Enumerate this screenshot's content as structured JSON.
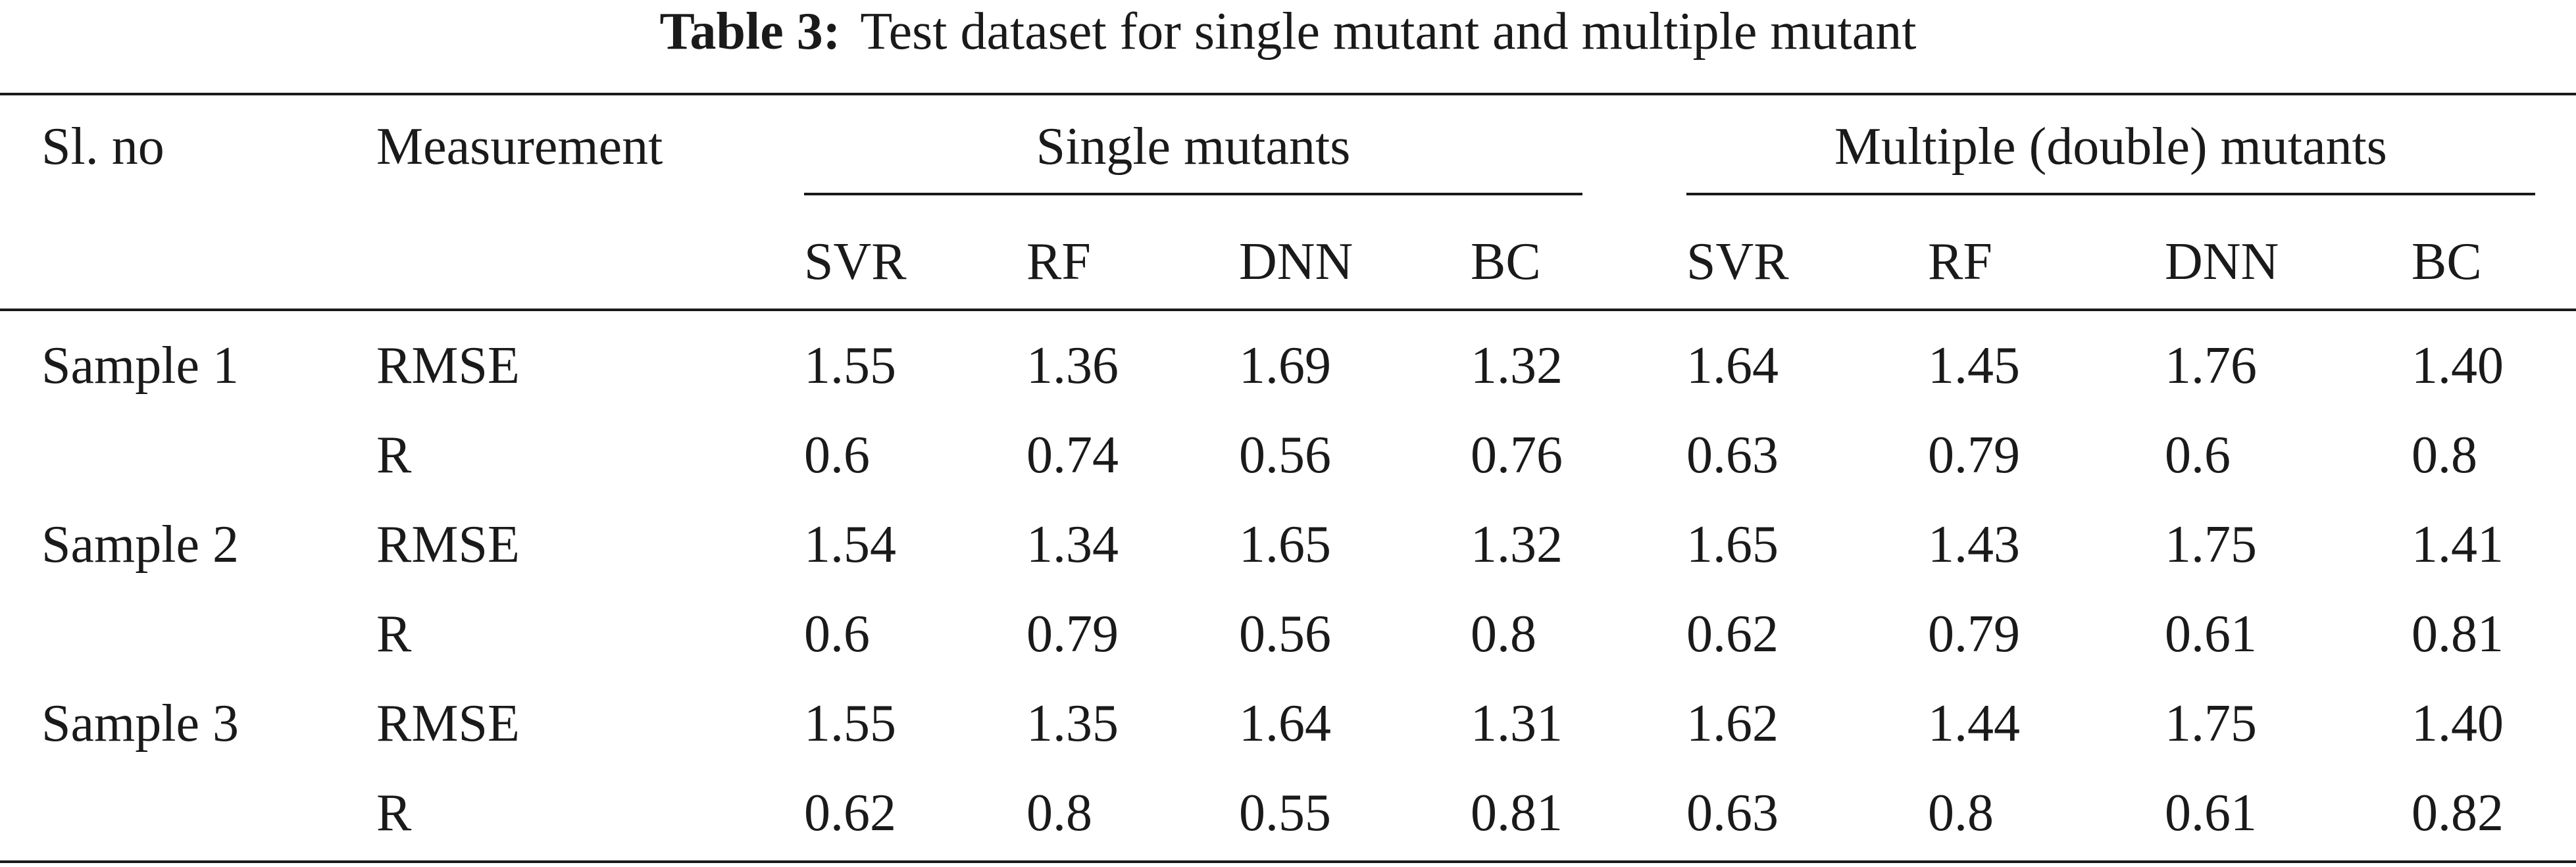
{
  "caption": {
    "label": "Table 3:",
    "text": "Test dataset for single mutant and multiple mutant"
  },
  "header": {
    "slno": "Sl. no",
    "measurement": "Measurement",
    "group_single": "Single mutants",
    "group_multiple": "Multiple (double) mutants",
    "single_models": [
      "SVR",
      "RF",
      "DNN",
      "BC"
    ],
    "multiple_models": [
      "SVR",
      "RF",
      "DNN",
      "BC"
    ]
  },
  "rows": [
    {
      "sample": "Sample 1",
      "measure": "RMSE",
      "single": [
        "1.55",
        "1.36",
        "1.69",
        "1.32"
      ],
      "multiple": [
        "1.64",
        "1.45",
        "1.76",
        "1.40"
      ]
    },
    {
      "sample": "",
      "measure": "R",
      "single": [
        "0.6",
        "0.74",
        "0.56",
        "0.76"
      ],
      "multiple": [
        "0.63",
        "0.79",
        "0.6",
        "0.8"
      ]
    },
    {
      "sample": "Sample 2",
      "measure": "RMSE",
      "single": [
        "1.54",
        "1.34",
        "1.65",
        "1.32"
      ],
      "multiple": [
        "1.65",
        "1.43",
        "1.75",
        "1.41"
      ]
    },
    {
      "sample": "",
      "measure": "R",
      "single": [
        "0.6",
        "0.79",
        "0.56",
        "0.8"
      ],
      "multiple": [
        "0.62",
        "0.79",
        "0.61",
        "0.81"
      ]
    },
    {
      "sample": "Sample 3",
      "measure": "RMSE",
      "single": [
        "1.55",
        "1.35",
        "1.64",
        "1.31"
      ],
      "multiple": [
        "1.62",
        "1.44",
        "1.75",
        "1.40"
      ]
    },
    {
      "sample": "",
      "measure": "R",
      "single": [
        "0.62",
        "0.8",
        "0.55",
        "0.81"
      ],
      "multiple": [
        "0.63",
        "0.8",
        "0.61",
        "0.82"
      ]
    }
  ]
}
